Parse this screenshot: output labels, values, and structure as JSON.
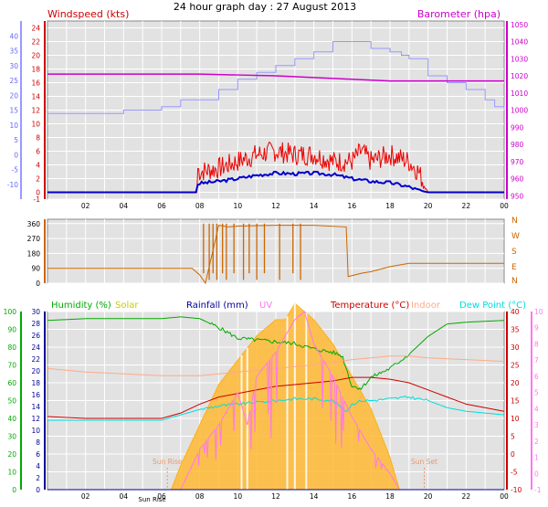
{
  "title": "24 hour graph day : 27 August 2013",
  "colors": {
    "windspeed": "#ee0000",
    "windavg": "#0000cc",
    "barometer": "#cc00cc",
    "windgust_light": "#9999ff",
    "direction": "#cc6600",
    "humidity": "#00aa00",
    "solar": "#ffb833",
    "rainfall": "#000099",
    "uv": "#ff77ee",
    "temperature": "#cc0000",
    "indoor": "#ffaa88",
    "dewpoint": "#00dddd",
    "plot_bg": "#e2e2e2"
  },
  "x_ticks": [
    "02",
    "04",
    "06",
    "08",
    "10",
    "12",
    "14",
    "16",
    "18",
    "20",
    "22",
    "00"
  ],
  "chart_data": [
    {
      "type": "line",
      "name": "wind-barometer",
      "labels": {
        "left": "Windspeed (kts)",
        "right": "Barometer (hpa)"
      },
      "x_ticks": [
        "02",
        "04",
        "06",
        "08",
        "10",
        "12",
        "14",
        "16",
        "18",
        "20",
        "22",
        "00"
      ],
      "left_outer_axis": {
        "range": [
          -15,
          45
        ],
        "ticks": [
          "40",
          "35",
          "30",
          "25",
          "20",
          "15",
          "10",
          "5",
          "0",
          "-5",
          "-10"
        ]
      },
      "left_axis": {
        "range": [
          -1,
          25
        ],
        "ticks": [
          "24",
          "22",
          "20",
          "18",
          "16",
          "14",
          "12",
          "10",
          "8",
          "6",
          "4",
          "2",
          "0",
          "-1"
        ]
      },
      "right_axis": {
        "range": [
          948,
          1052
        ],
        "ticks": [
          "1050",
          "1040",
          "1030",
          "1020",
          "1010",
          "1000",
          "990",
          "980",
          "970",
          "960",
          "950"
        ]
      },
      "series": [
        {
          "key": "barometer",
          "axis": "right",
          "x": [
            0,
            4,
            8,
            10,
            12,
            14,
            16,
            18,
            20,
            22,
            24
          ],
          "y": [
            1021,
            1021,
            1021,
            1020.5,
            1020,
            1019,
            1018,
            1017,
            1017,
            1017,
            1017
          ]
        },
        {
          "key": "gust",
          "axis": "left",
          "x": [
            0,
            2,
            3,
            4,
            5,
            6,
            7,
            8,
            9,
            10,
            11,
            12,
            13,
            14,
            15,
            16,
            17,
            18,
            18.6,
            19,
            20,
            21,
            22,
            23,
            23.5,
            24
          ],
          "y": [
            11.5,
            11.5,
            11.5,
            12,
            12,
            12.5,
            13.5,
            13.5,
            15,
            16.5,
            17.5,
            18.5,
            19.5,
            20.5,
            22,
            22,
            21,
            20.5,
            20,
            19.5,
            17,
            16,
            15,
            13.5,
            12.5,
            12
          ]
        },
        {
          "key": "speed",
          "axis": "left",
          "x": [
            0,
            7.85,
            7.9,
            8,
            9,
            10,
            11,
            12,
            13,
            14,
            15,
            16,
            16.5,
            17,
            18,
            19,
            19.5,
            20,
            24
          ],
          "y": [
            0,
            0,
            3.5,
            3,
            3.5,
            4.5,
            5.5,
            6,
            5.5,
            5.5,
            4.5,
            4.5,
            6,
            4.5,
            5.5,
            4.5,
            3,
            0,
            0
          ]
        },
        {
          "key": "avg",
          "axis": "left",
          "x": [
            0,
            7.85,
            7.9,
            8,
            9,
            10,
            11,
            12,
            13,
            14,
            15,
            16,
            17,
            18,
            19,
            19.5,
            20,
            24
          ],
          "y": [
            0,
            0,
            1.2,
            1.3,
            1.6,
            2,
            2.5,
            2.8,
            2.7,
            2.8,
            2.6,
            2,
            1.6,
            1.4,
            0.8,
            0.3,
            0,
            0
          ]
        }
      ]
    },
    {
      "type": "line",
      "name": "wind-direction",
      "x_ticks": [
        "02",
        "04",
        "06",
        "08",
        "10",
        "12",
        "14",
        "16",
        "18",
        "20",
        "22",
        "00"
      ],
      "left_axis": {
        "range": [
          0,
          370
        ],
        "ticks": [
          "360",
          "270",
          "180",
          "90",
          "0"
        ]
      },
      "right_labels": [
        "N",
        "W",
        "S",
        "E",
        "N"
      ],
      "series": [
        {
          "key": "direction",
          "x": [
            0,
            7.6,
            8,
            8.3,
            9,
            9.5,
            10,
            12,
            14,
            15.7,
            15.8,
            16.5,
            17,
            18,
            19,
            20,
            24
          ],
          "y": [
            90,
            90,
            50,
            0,
            350,
            340,
            345,
            350,
            350,
            340,
            40,
            60,
            70,
            100,
            120,
            120,
            120
          ]
        }
      ]
    },
    {
      "type": "line",
      "name": "temp-humidity",
      "legend": [
        "Humidity (%)",
        "Solar",
        "Rainfall (mm)",
        "UV",
        "Temperature (°C)",
        "Indoor",
        "Dew Point (°C)"
      ],
      "x_ticks": [
        "02",
        "04",
        "06",
        "08",
        "10",
        "12",
        "14",
        "16",
        "18",
        "20",
        "22",
        "00"
      ],
      "annotations": [
        "Sun Rise",
        "Sun Set",
        "Sun Rise"
      ],
      "humidity_axis": {
        "range": [
          0,
          100
        ],
        "ticks": [
          "100",
          "90",
          "80",
          "70",
          "60",
          "50",
          "40",
          "30",
          "20",
          "10",
          "0"
        ]
      },
      "rain_axis": {
        "range": [
          0,
          30
        ],
        "ticks": [
          "30",
          "28",
          "26",
          "24",
          "22",
          "20",
          "18",
          "16",
          "14",
          "12",
          "10",
          "8",
          "6",
          "4",
          "2",
          "0"
        ]
      },
      "temp_axis": {
        "range": [
          -10,
          40
        ],
        "ticks": [
          "40",
          "35",
          "30",
          "25",
          "20",
          "15",
          "10",
          "5",
          "0",
          "-5",
          "-10"
        ]
      },
      "uv_axis": {
        "range": [
          -1,
          10
        ],
        "ticks": [
          "10",
          "9",
          "8",
          "7",
          "6",
          "5",
          "4",
          "3",
          "2",
          "1",
          "0",
          "-1"
        ]
      },
      "series": [
        {
          "key": "humidity",
          "axis": "humidity",
          "x": [
            0,
            2,
            4,
            6,
            7,
            8,
            9,
            10,
            11,
            12,
            13,
            14,
            15,
            15.5,
            16,
            16.5,
            17,
            18,
            18.5,
            19,
            20,
            21,
            22,
            24
          ],
          "y": [
            95,
            96,
            96,
            96,
            97,
            96,
            91,
            85,
            84,
            83,
            82,
            79,
            77,
            75,
            58,
            57,
            63,
            68,
            72,
            76,
            86,
            93,
            94,
            95
          ]
        },
        {
          "key": "temperature",
          "axis": "temp",
          "x": [
            0,
            2,
            4,
            6,
            7,
            8,
            9,
            10,
            11,
            12,
            13,
            14,
            15,
            16,
            17,
            18,
            19,
            20,
            21,
            22,
            24
          ],
          "y": [
            10.5,
            10,
            10,
            10,
            11.5,
            14,
            16,
            17,
            18,
            19,
            19.5,
            20,
            20.5,
            21.5,
            21.5,
            21,
            20,
            18,
            16,
            14,
            12
          ]
        },
        {
          "key": "dewpoint",
          "axis": "temp",
          "x": [
            0,
            2,
            4,
            6,
            7,
            8,
            9,
            10,
            11,
            12,
            13,
            14,
            15,
            15.7,
            16,
            16.5,
            17,
            18,
            19,
            20,
            21,
            22,
            24
          ],
          "y": [
            9.5,
            9.5,
            9.5,
            9.5,
            11,
            12.5,
            13.5,
            14,
            14.5,
            15,
            15.5,
            15.5,
            15,
            12,
            14,
            15,
            15,
            15.5,
            16,
            15,
            13,
            12,
            11
          ]
        },
        {
          "key": "indoor",
          "axis": "temp",
          "x": [
            0,
            2,
            4,
            6,
            8,
            10,
            12,
            14,
            16,
            17,
            18,
            19,
            20,
            22,
            24
          ],
          "y": [
            24,
            23,
            22.5,
            22,
            22,
            23,
            24,
            25,
            26.5,
            27,
            27.5,
            27.5,
            27,
            26.5,
            26
          ]
        },
        {
          "key": "solar",
          "axis": "uv",
          "x": [
            6.5,
            7,
            8,
            9,
            10,
            11,
            12,
            12.5,
            13,
            13.5,
            14,
            15,
            16,
            17,
            17.5,
            18,
            18.5,
            24
          ],
          "y": [
            -1,
            0.5,
            3,
            5.5,
            7,
            8.5,
            9.5,
            9.5,
            10.5,
            10,
            9.5,
            8,
            6,
            4,
            2.5,
            1,
            -1,
            -1
          ]
        },
        {
          "key": "uv",
          "axis": "uv",
          "x": [
            7,
            8,
            9,
            10,
            10.5,
            11,
            12,
            13,
            13.5,
            14,
            15,
            16,
            17,
            18,
            18.5
          ],
          "y": [
            -1,
            1.5,
            3,
            5,
            3,
            6,
            7.5,
            9.5,
            10,
            8,
            6,
            3.5,
            1.5,
            0,
            -1
          ]
        },
        {
          "key": "rainfall",
          "axis": "rain",
          "x": [
            0,
            24
          ],
          "y": [
            0,
            0
          ]
        }
      ]
    }
  ]
}
